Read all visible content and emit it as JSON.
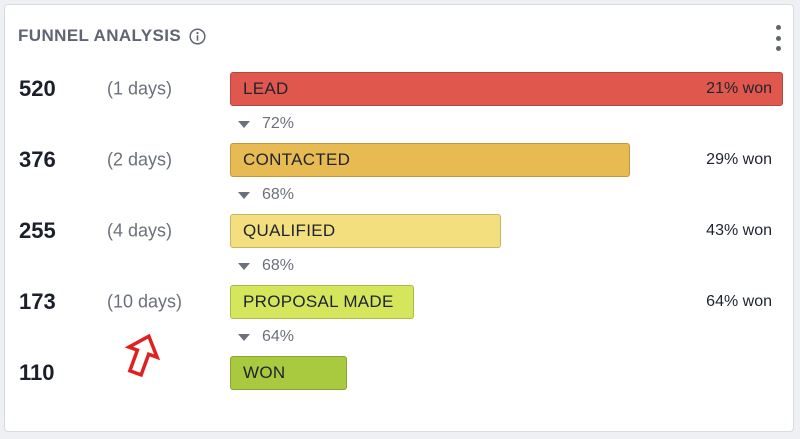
{
  "widget": {
    "title": "FUNNEL ANALYSIS",
    "info_icon": "info-circle-icon",
    "menu_icon": "kebab-menu-icon"
  },
  "funnel": {
    "max_count": 520,
    "stages": [
      {
        "count": "520",
        "days": "(1 days)",
        "name": "LEAD",
        "won": "21% won",
        "color": "#e0584d",
        "value": 520
      },
      {
        "count": "376",
        "days": "(2 days)",
        "name": "CONTACTED",
        "won": "29% won",
        "color": "#e8bb52",
        "value": 376
      },
      {
        "count": "255",
        "days": "(4 days)",
        "name": "QUALIFIED",
        "won": "43% won",
        "color": "#f3df7e",
        "value": 255
      },
      {
        "count": "173",
        "days": "(10 days)",
        "name": "PROPOSAL MADE",
        "won": "64% won",
        "color": "#d5e55c",
        "value": 173
      },
      {
        "count": "110",
        "days": "",
        "name": "WON",
        "won": "",
        "color": "#a9c93f",
        "value": 110
      }
    ],
    "conversions": [
      "72%",
      "68%",
      "68%",
      "64%"
    ]
  },
  "annotation": {
    "icon": "red-up-arrow-icon",
    "color": "#e02020"
  }
}
